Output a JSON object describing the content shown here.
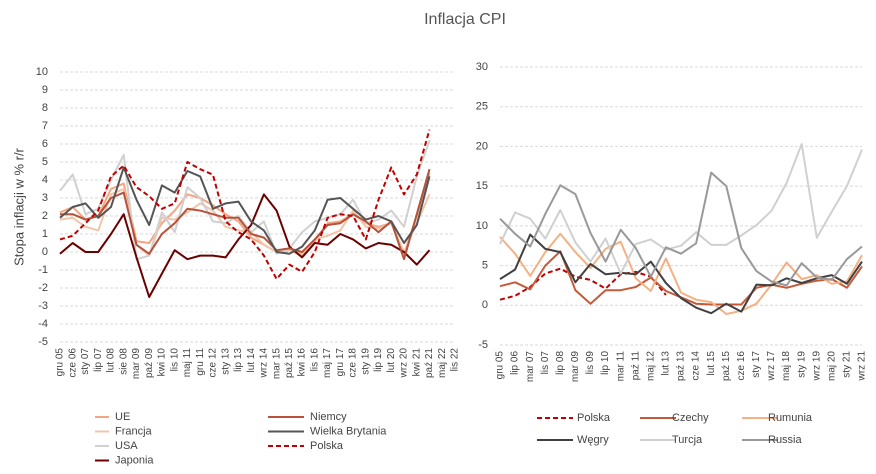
{
  "title": "Inflacja CPI",
  "chart_data": [
    {
      "type": "line",
      "y_axis_label": "Stopa inflacji w % r/r",
      "categories": [
        "gru 05",
        "cze 06",
        "sty 07",
        "lip 07",
        "lut 08",
        "sie 08",
        "mar 09",
        "paź 09",
        "kwi 10",
        "lis 10",
        "maj 11",
        "gru 11",
        "cze 12",
        "sty 13",
        "lip 13",
        "lut 14",
        "wrz 14",
        "mar 15",
        "paź 15",
        "kwi 16",
        "lis 16",
        "maj 17",
        "gru 17",
        "cze 18",
        "sty 19",
        "lip 19",
        "lut 20",
        "wrz 20",
        "kwi 21",
        "paź 21",
        "maj 22",
        "lis 22"
      ],
      "ylim": [
        -5,
        10
      ],
      "yticks": [
        -5,
        -4,
        -3,
        -2,
        -1,
        0,
        1,
        2,
        3,
        4,
        5,
        6,
        7,
        8,
        9,
        10
      ],
      "grid": true,
      "series": [
        {
          "name": "UE",
          "color": "#f4a582",
          "dash": false,
          "values": [
            2.2,
            2.5,
            1.8,
            2.0,
            3.5,
            3.8,
            0.6,
            0.5,
            1.6,
            2.3,
            3.2,
            3.0,
            2.6,
            2.1,
            1.7,
            0.8,
            0.4,
            0.0,
            0.1,
            -0.2,
            0.6,
            1.6,
            1.7,
            2.1,
            1.6,
            1.4,
            1.6,
            -0.1,
            2.0,
            4.4,
            null,
            null
          ]
        },
        {
          "name": "Francja",
          "color": "#f2c4a8",
          "dash": false,
          "values": [
            1.8,
            1.9,
            1.4,
            1.2,
            3.2,
            3.5,
            0.4,
            -0.2,
            1.9,
            1.8,
            2.2,
            2.7,
            2.3,
            1.4,
            1.2,
            1.1,
            0.4,
            0.0,
            0.1,
            -0.1,
            0.7,
            0.9,
            1.2,
            2.3,
            1.4,
            1.3,
            1.6,
            0.0,
            1.6,
            3.2,
            null,
            null
          ]
        },
        {
          "name": "USA",
          "color": "#d0d0d0",
          "dash": false,
          "values": [
            3.4,
            4.3,
            2.1,
            2.4,
            4.0,
            5.4,
            -0.4,
            -0.2,
            2.2,
            1.1,
            3.6,
            3.0,
            1.7,
            1.6,
            2.0,
            1.1,
            1.7,
            -0.1,
            0.2,
            1.1,
            1.7,
            1.9,
            2.1,
            2.9,
            1.6,
            1.8,
            2.3,
            1.4,
            4.2,
            6.2,
            null,
            null
          ]
        },
        {
          "name": "Japonia",
          "color": "#6b0000",
          "dash": false,
          "values": [
            -0.1,
            0.5,
            0.0,
            0.0,
            1.0,
            2.1,
            -0.3,
            -2.5,
            -1.2,
            0.1,
            -0.4,
            -0.2,
            -0.2,
            -0.3,
            0.7,
            1.5,
            3.2,
            2.3,
            0.3,
            -0.3,
            0.5,
            0.4,
            1.0,
            0.7,
            0.2,
            0.5,
            0.4,
            0.0,
            -0.7,
            0.1,
            null,
            null
          ]
        },
        {
          "name": "Niemcy",
          "color": "#b5533a",
          "dash": false,
          "values": [
            2.1,
            2.1,
            1.8,
            2.0,
            3.0,
            3.3,
            0.4,
            -0.1,
            1.0,
            1.6,
            2.4,
            2.3,
            2.1,
            1.9,
            1.9,
            1.0,
            0.8,
            0.1,
            0.2,
            0.0,
            0.7,
            1.5,
            1.6,
            2.1,
            1.7,
            1.1,
            1.7,
            -0.4,
            2.1,
            4.6,
            null,
            null
          ]
        },
        {
          "name": "Wielka Brytania",
          "color": "#555555",
          "dash": false,
          "values": [
            1.9,
            2.5,
            2.7,
            1.9,
            2.5,
            4.7,
            2.9,
            1.5,
            3.7,
            3.3,
            4.5,
            4.2,
            2.4,
            2.7,
            2.8,
            1.7,
            1.2,
            0.0,
            -0.1,
            0.3,
            1.2,
            2.9,
            3.0,
            2.4,
            1.8,
            2.0,
            1.7,
            0.5,
            1.5,
            4.2,
            null,
            null
          ]
        },
        {
          "name": "Polska",
          "color": "#c00000",
          "dash": true,
          "values": [
            0.7,
            0.9,
            1.6,
            2.3,
            4.2,
            4.8,
            3.6,
            3.1,
            2.4,
            2.7,
            5.0,
            4.6,
            4.3,
            1.7,
            1.1,
            0.7,
            -0.2,
            -1.5,
            -0.7,
            -1.1,
            0.0,
            1.9,
            2.1,
            2.0,
            0.7,
            2.9,
            4.7,
            3.2,
            4.3,
            6.8,
            null,
            null
          ]
        }
      ]
    },
    {
      "type": "line",
      "categories": [
        "gru 05",
        "lip 06",
        "mar 07",
        "lis 07",
        "lip 08",
        "mar 09",
        "lis 09",
        "lip 10",
        "mar 11",
        "paź 11",
        "maj 12",
        "lut 13",
        "paź 13",
        "cze 14",
        "lut 15",
        "paź 15",
        "cze 16",
        "sty 17",
        "wrz 17",
        "maj 18",
        "sty 19",
        "wrz 19",
        "maj 20",
        "sty 21",
        "wrz 21"
      ],
      "ylim": [
        -5,
        30
      ],
      "yticks": [
        -5,
        0,
        5,
        10,
        15,
        20,
        25,
        30
      ],
      "grid": true,
      "series": [
        {
          "name": "Polska",
          "color": "#c00000",
          "dash": true,
          "values": [
            0.7,
            1.2,
            2.3,
            4.0,
            4.6,
            3.6,
            3.2,
            2.1,
            3.9,
            4.2,
            3.6,
            1.3,
            null,
            null,
            null,
            null,
            null,
            null,
            null,
            null,
            null,
            null,
            null,
            null,
            null
          ]
        },
        {
          "name": "Czechy",
          "color": "#c55a3a",
          "dash": false,
          "values": [
            2.4,
            2.9,
            2.0,
            5.0,
            6.8,
            1.9,
            0.2,
            1.9,
            1.9,
            2.3,
            3.5,
            1.8,
            1.0,
            0.2,
            0.1,
            0.1,
            0.1,
            2.2,
            2.6,
            2.2,
            2.7,
            3.1,
            3.3,
            2.2,
            4.9
          ]
        },
        {
          "name": "Rumunia",
          "color": "#f4b183",
          "dash": false,
          "values": [
            8.6,
            6.5,
            3.7,
            6.7,
            9.0,
            6.7,
            4.7,
            7.1,
            8.0,
            3.4,
            1.8,
            5.9,
            1.6,
            0.7,
            0.4,
            -1.1,
            -0.7,
            0.2,
            2.6,
            5.4,
            3.3,
            3.8,
            2.7,
            3.0,
            6.3
          ]
        },
        {
          "name": "Węgry",
          "color": "#404040",
          "dash": false,
          "values": [
            3.3,
            4.5,
            8.9,
            7.1,
            6.7,
            2.9,
            5.2,
            3.9,
            4.1,
            3.9,
            5.5,
            2.8,
            0.9,
            -0.3,
            -1.0,
            0.2,
            -0.8,
            2.6,
            2.5,
            3.4,
            2.8,
            3.4,
            3.8,
            2.7,
            5.5
          ]
        },
        {
          "name": "Turcja",
          "color": "#d0d0d0",
          "dash": false,
          "values": [
            7.7,
            11.7,
            10.9,
            8.4,
            12.0,
            7.9,
            5.5,
            8.4,
            4.0,
            7.7,
            8.3,
            7.0,
            7.5,
            9.2,
            7.6,
            7.6,
            8.8,
            10.1,
            11.9,
            15.4,
            20.3,
            8.5,
            11.8,
            15.0,
            19.6
          ]
        },
        {
          "name": "Russia",
          "color": "#999999",
          "dash": false,
          "values": [
            10.9,
            9.0,
            7.4,
            11.5,
            15.1,
            14.0,
            9.1,
            5.5,
            9.5,
            7.2,
            3.6,
            7.3,
            6.5,
            7.8,
            16.7,
            15.0,
            7.2,
            4.3,
            3.0,
            2.5,
            5.3,
            3.5,
            3.2,
            5.8,
            7.4
          ]
        }
      ]
    }
  ]
}
